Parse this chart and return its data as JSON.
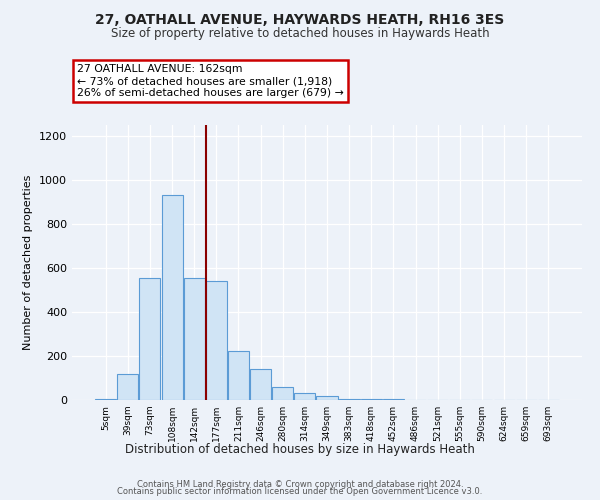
{
  "title1": "27, OATHALL AVENUE, HAYWARDS HEATH, RH16 3ES",
  "title2": "Size of property relative to detached houses in Haywards Heath",
  "xlabel": "Distribution of detached houses by size in Haywards Heath",
  "ylabel": "Number of detached properties",
  "categories": [
    "5sqm",
    "39sqm",
    "73sqm",
    "108sqm",
    "142sqm",
    "177sqm",
    "211sqm",
    "246sqm",
    "280sqm",
    "314sqm",
    "349sqm",
    "383sqm",
    "418sqm",
    "452sqm",
    "486sqm",
    "521sqm",
    "555sqm",
    "590sqm",
    "624sqm",
    "659sqm",
    "693sqm"
  ],
  "values": [
    5,
    120,
    555,
    930,
    555,
    540,
    225,
    140,
    60,
    30,
    20,
    5,
    5,
    5,
    0,
    0,
    0,
    0,
    0,
    0,
    0
  ],
  "bar_color": "#d0e4f5",
  "bar_edge_color": "#5b9bd5",
  "bar_width": 0.95,
  "ylim": [
    0,
    1250
  ],
  "yticks": [
    0,
    200,
    400,
    600,
    800,
    1000,
    1200
  ],
  "red_line_x": 4.55,
  "red_line_color": "#8B0000",
  "annotation_line1": "27 OATHALL AVENUE: 162sqm",
  "annotation_line2": "← 73% of detached houses are smaller (1,918)",
  "annotation_line3": "26% of semi-detached houses are larger (679) →",
  "annotation_box_color": "#ffffff",
  "annotation_box_edge": "#cc0000",
  "footer1": "Contains HM Land Registry data © Crown copyright and database right 2024.",
  "footer2": "Contains public sector information licensed under the Open Government Licence v3.0.",
  "background_color": "#edf2f9",
  "grid_color": "#ffffff"
}
